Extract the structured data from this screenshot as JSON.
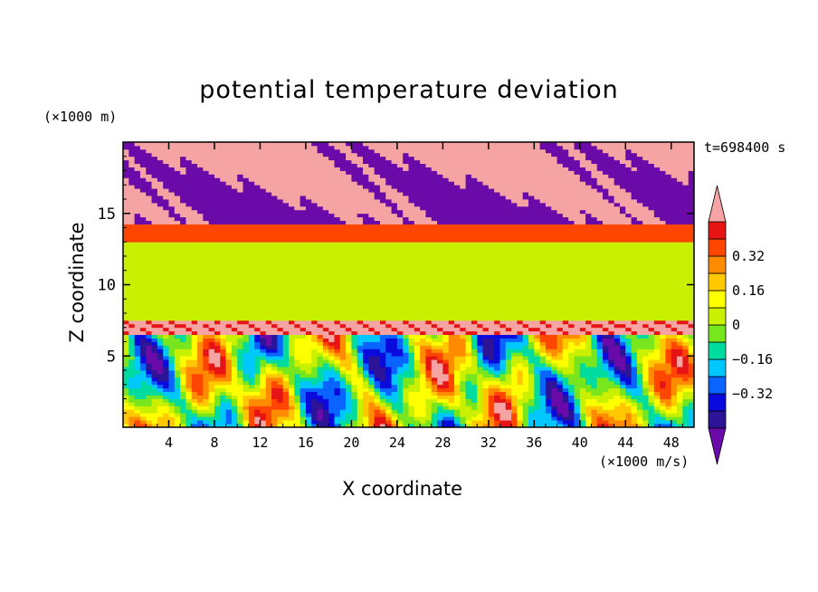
{
  "chart_data": {
    "type": "heatmap",
    "title": "potential temperature deviation",
    "xlabel": "X coordinate",
    "ylabel": "Z coordinate",
    "x_unit": "(×1000 m/s)",
    "y_unit": "(×1000 m)",
    "time_label": "t=698400 s",
    "xlim": [
      0,
      50
    ],
    "ylim": [
      0,
      20
    ],
    "x_ticks": [
      4,
      8,
      12,
      16,
      20,
      24,
      28,
      32,
      36,
      40,
      44,
      48
    ],
    "y_ticks": [
      5,
      10,
      15
    ],
    "colorbar": {
      "levels": [
        -0.48,
        -0.4,
        -0.32,
        -0.24,
        -0.16,
        -0.08,
        0,
        0.08,
        0.16,
        0.24,
        0.32,
        0.4,
        0.48
      ],
      "colors": [
        "#6a0aa8",
        "#2d1496",
        "#0a0adc",
        "#0a64ff",
        "#00c8ff",
        "#00dca0",
        "#78e61e",
        "#c8f000",
        "#ffff00",
        "#ffc800",
        "#ff8c00",
        "#ff4600",
        "#e61414",
        "#f5a3a3"
      ],
      "tick_labels": [
        "0.32",
        "0.16",
        "0",
        "−0.16",
        "−0.32"
      ],
      "tick_values": [
        0.32,
        0.16,
        0,
        -0.16,
        -0.32
      ],
      "extend": "both"
    },
    "bands": [
      {
        "z_range": [
          0,
          6.5
        ],
        "description": "convective cells, values -0.48 to 0.48"
      },
      {
        "z_range": [
          6.5,
          7.5
        ],
        "value": 0.5
      },
      {
        "z_range": [
          7.5,
          13
        ],
        "value": 0.04
      },
      {
        "z_range": [
          13,
          14.2
        ],
        "value": 0.35
      },
      {
        "z_range": [
          14.2,
          20
        ],
        "description": "mixed -0.5 and 0.5"
      }
    ]
  }
}
